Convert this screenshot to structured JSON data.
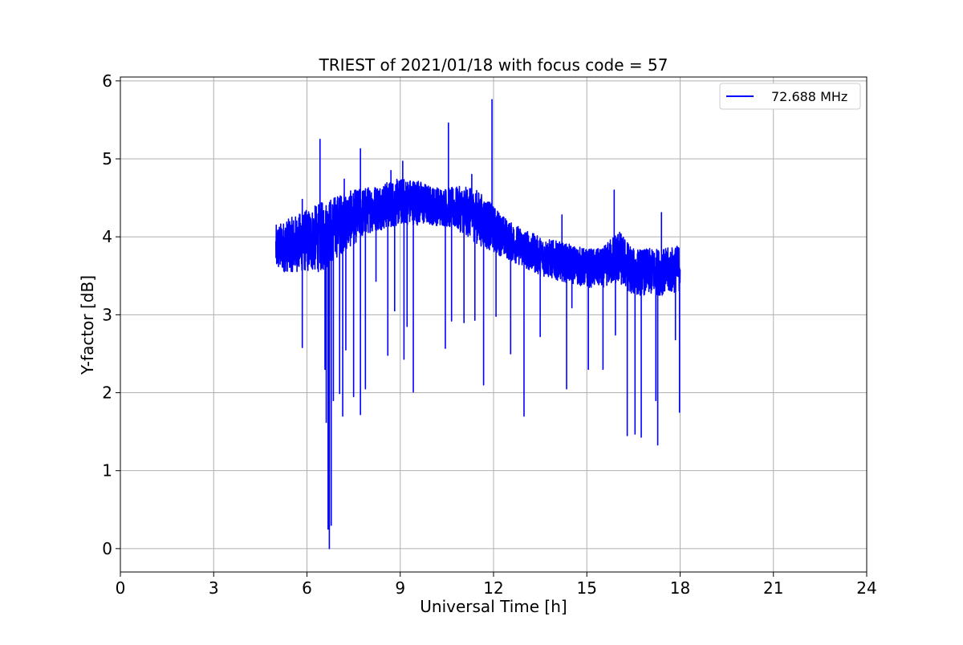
{
  "chart_data": {
    "type": "line",
    "title": "TRIEST of 2021/01/18 with focus code = 57",
    "xlabel": "Universal Time [h]",
    "ylabel": "Y-factor [dB]",
    "xlim": [
      0,
      24
    ],
    "ylim": [
      -0.3,
      6.05
    ],
    "xticks": [
      0,
      3,
      6,
      9,
      12,
      15,
      18,
      21,
      24
    ],
    "yticks": [
      0,
      1,
      2,
      3,
      4,
      5,
      6
    ],
    "xtick_labels": [
      "0",
      "3",
      "6",
      "9",
      "12",
      "15",
      "18",
      "21",
      "24"
    ],
    "ytick_labels": [
      "0",
      "1",
      "2",
      "3",
      "4",
      "5",
      "6"
    ],
    "grid": true,
    "legend_position": "top-right",
    "series": [
      {
        "name": "72.688 MHz",
        "color": "#0000ff",
        "baseline": {
          "x": [
            5.0,
            5.5,
            6.0,
            6.5,
            7.0,
            7.5,
            8.0,
            8.5,
            9.0,
            9.5,
            10.0,
            10.5,
            11.0,
            11.5,
            12.0,
            12.5,
            13.0,
            13.5,
            14.0,
            14.5,
            15.0,
            15.5,
            16.0,
            16.5,
            17.0,
            17.5,
            18.0
          ],
          "y": [
            3.85,
            3.9,
            3.95,
            4.0,
            4.15,
            4.25,
            4.35,
            4.4,
            4.45,
            4.45,
            4.4,
            4.38,
            4.35,
            4.25,
            4.1,
            3.95,
            3.85,
            3.75,
            3.7,
            3.65,
            3.6,
            3.6,
            3.75,
            3.55,
            3.55,
            3.55,
            3.6
          ],
          "noise_amplitude": [
            0.3,
            0.35,
            0.4,
            0.45,
            0.4,
            0.35,
            0.3,
            0.3,
            0.3,
            0.3,
            0.25,
            0.25,
            0.3,
            0.35,
            0.3,
            0.25,
            0.25,
            0.25,
            0.25,
            0.25,
            0.25,
            0.25,
            0.35,
            0.3,
            0.3,
            0.3,
            0.3
          ]
        },
        "spikes_up": [
          [
            6.42,
            5.25
          ],
          [
            7.72,
            5.13
          ],
          [
            9.08,
            4.97
          ],
          [
            10.55,
            5.46
          ],
          [
            11.95,
            5.76
          ],
          [
            15.88,
            4.6
          ],
          [
            14.2,
            4.28
          ],
          [
            17.4,
            4.31
          ],
          [
            8.7,
            4.85
          ],
          [
            11.3,
            4.8
          ],
          [
            5.85,
            4.48
          ],
          [
            7.2,
            4.74
          ]
        ],
        "spikes_down": [
          [
            5.85,
            2.58
          ],
          [
            6.58,
            2.3
          ],
          [
            6.62,
            1.62
          ],
          [
            6.68,
            0.25
          ],
          [
            6.72,
            0.0
          ],
          [
            6.78,
            0.3
          ],
          [
            6.85,
            1.9
          ],
          [
            7.05,
            1.99
          ],
          [
            7.15,
            1.7
          ],
          [
            7.25,
            2.55
          ],
          [
            7.5,
            1.95
          ],
          [
            7.72,
            1.72
          ],
          [
            7.88,
            2.05
          ],
          [
            8.22,
            3.43
          ],
          [
            8.6,
            2.48
          ],
          [
            8.82,
            3.05
          ],
          [
            9.12,
            2.43
          ],
          [
            9.22,
            2.85
          ],
          [
            9.42,
            2.01
          ],
          [
            10.45,
            2.57
          ],
          [
            10.65,
            2.92
          ],
          [
            11.05,
            2.9
          ],
          [
            11.4,
            2.93
          ],
          [
            11.68,
            2.1
          ],
          [
            12.08,
            2.98
          ],
          [
            12.55,
            2.5
          ],
          [
            12.98,
            1.7
          ],
          [
            13.5,
            2.72
          ],
          [
            14.35,
            2.05
          ],
          [
            14.52,
            3.09
          ],
          [
            15.05,
            2.3
          ],
          [
            15.52,
            2.3
          ],
          [
            15.92,
            2.74
          ],
          [
            16.3,
            1.45
          ],
          [
            16.55,
            1.47
          ],
          [
            16.75,
            1.43
          ],
          [
            17.22,
            1.9
          ],
          [
            17.28,
            1.33
          ],
          [
            17.85,
            2.68
          ],
          [
            17.98,
            1.75
          ]
        ]
      }
    ]
  }
}
